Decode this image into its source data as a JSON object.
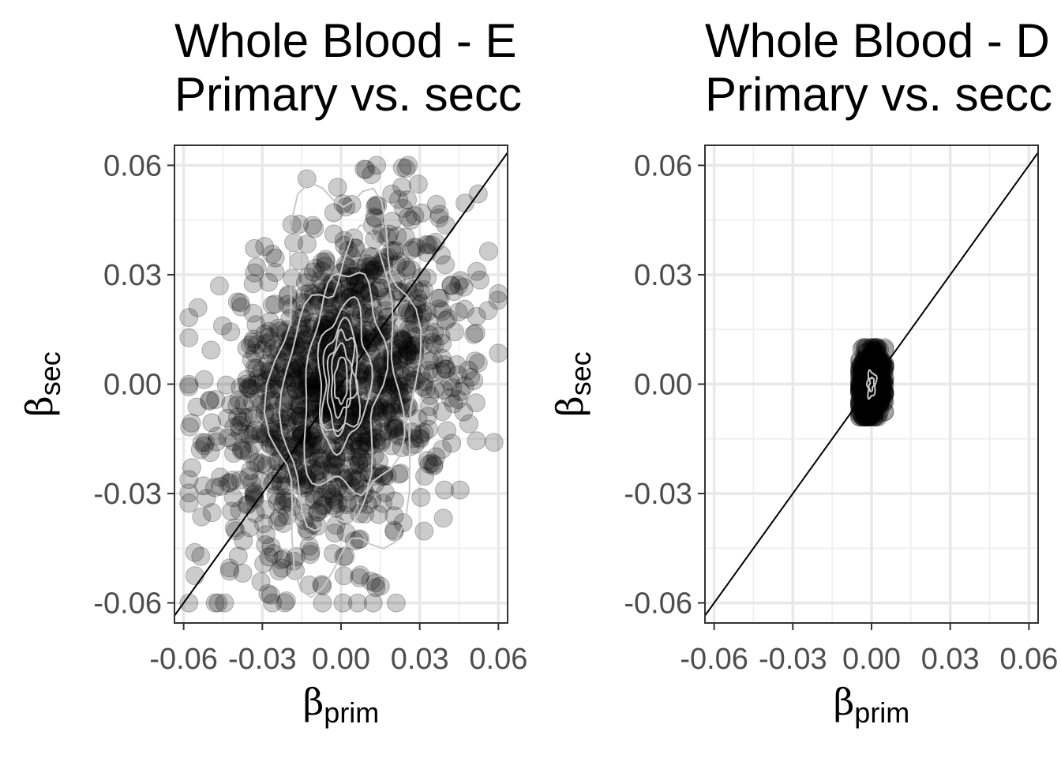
{
  "chart_data": [
    {
      "type": "scatter",
      "title": "Whole Blood - E",
      "subtitle": "Primary vs. secc",
      "xlabel": "β",
      "xlabel_sub": "prim",
      "ylabel": "β",
      "ylabel_sub": "sec",
      "xlim": [
        -0.0635,
        0.0635
      ],
      "ylim": [
        -0.0655,
        0.0655
      ],
      "xticks": [
        -0.06,
        -0.03,
        0.0,
        0.03,
        0.06
      ],
      "xtick_labels": [
        "-0.06",
        "-0.03",
        "0.00",
        "0.03",
        "0.06"
      ],
      "yticks": [
        -0.06,
        -0.03,
        0.0,
        0.03,
        0.06
      ],
      "ytick_labels": [
        "-0.06",
        "-0.03",
        "0.00",
        "0.03",
        "0.06"
      ],
      "grid": true,
      "reference_line": "y = x",
      "point_color": "#000000",
      "point_opacity": 0.2,
      "contour_color": "#c8c8c8",
      "sample": {
        "n": 1200,
        "x_sd": 0.024,
        "y_sd": 0.022,
        "xy_slope": 0.3,
        "x_range": [
          -0.058,
          0.06
        ],
        "y_range": [
          -0.06,
          0.06
        ]
      },
      "density_contours": [
        {
          "center": [
            0.0,
            0.001
          ],
          "sx": 0.0025,
          "sy": 0.006
        },
        {
          "center": [
            0.0,
            0.001
          ],
          "sx": 0.004,
          "sy": 0.009
        },
        {
          "center": [
            0.0,
            0.001
          ],
          "sx": 0.0055,
          "sy": 0.012
        },
        {
          "center": [
            0.0,
            0.001
          ],
          "sx": 0.007,
          "sy": 0.015
        },
        {
          "center": [
            0.001,
            0.002
          ],
          "sx": 0.0095,
          "sy": 0.02
        },
        {
          "center": [
            0.001,
            0.0
          ],
          "sx": 0.015,
          "sy": 0.03
        },
        {
          "center": [
            0.001,
            -0.002
          ],
          "sx": 0.021,
          "sy": 0.039
        },
        {
          "center": [
            0.001,
            0.0
          ],
          "sx": 0.028,
          "sy": 0.052
        }
      ]
    },
    {
      "type": "scatter",
      "title": "Whole Blood - D",
      "subtitle": "Primary vs. secc",
      "xlabel": "β",
      "xlabel_sub": "prim",
      "ylabel": "β",
      "ylabel_sub": "sec",
      "xlim": [
        -0.0635,
        0.0635
      ],
      "ylim": [
        -0.0655,
        0.0655
      ],
      "xticks": [
        -0.06,
        -0.03,
        0.0,
        0.03,
        0.06
      ],
      "xtick_labels": [
        "-0.06",
        "-0.03",
        "0.00",
        "0.03",
        "0.06"
      ],
      "yticks": [
        -0.06,
        -0.03,
        0.0,
        0.03,
        0.06
      ],
      "ytick_labels": [
        "-0.06",
        "-0.03",
        "0.00",
        "0.03",
        "0.06"
      ],
      "grid": true,
      "reference_line": "y = x",
      "point_color": "#000000",
      "point_opacity": 0.2,
      "contour_color": "#c8c8c8",
      "sample": {
        "n": 700,
        "x_sd": 0.0025,
        "y_sd": 0.0045,
        "xy_slope": 0.2,
        "x_range": [
          -0.0045,
          0.005
        ],
        "y_range": [
          -0.009,
          0.01
        ]
      },
      "density_contours": [
        {
          "center": [
            0.0,
            0.0
          ],
          "sx": 0.0009,
          "sy": 0.0018
        },
        {
          "center": [
            0.0,
            0.0
          ],
          "sx": 0.0017,
          "sy": 0.0035
        }
      ]
    }
  ]
}
